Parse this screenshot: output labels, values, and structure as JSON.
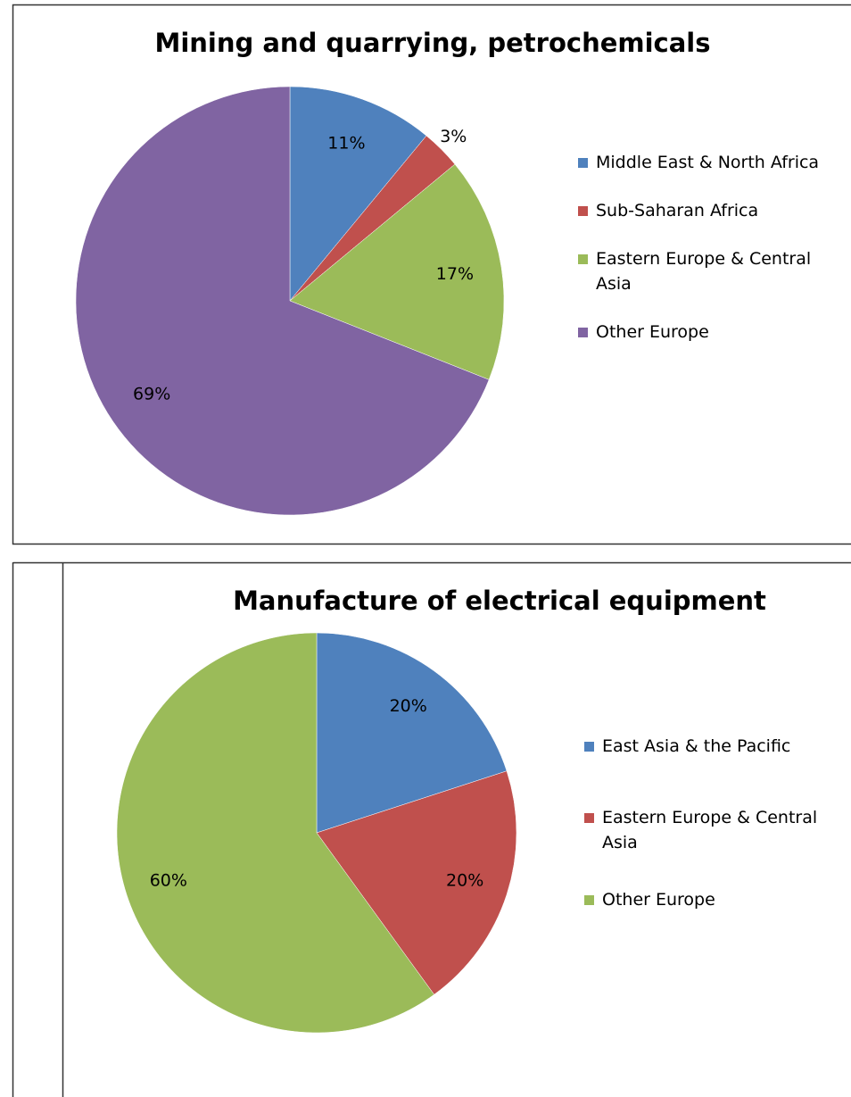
{
  "chart_data": [
    {
      "type": "pie",
      "title": "Mining and quarrying, petrochemicals",
      "categories": [
        "Middle East & North Africa",
        "Sub-Saharan Africa",
        "Eastern Europe & Central Asia",
        "Other Europe"
      ],
      "values": [
        11,
        3,
        17,
        69
      ],
      "value_labels": [
        "11%",
        "3%",
        "17%",
        "69%"
      ],
      "colors": [
        "#4f81bd",
        "#c0504d",
        "#9bbb59",
        "#8064a2"
      ],
      "legend": "right"
    },
    {
      "type": "pie",
      "title": "Manufacture of electrical equipment",
      "categories": [
        "East Asia & the Pacific",
        "Eastern Europe & Central Asia",
        "Other Europe"
      ],
      "values": [
        20,
        20,
        60
      ],
      "value_labels": [
        "20%",
        "20%",
        "60%"
      ],
      "colors": [
        "#4f81bd",
        "#c0504d",
        "#9bbb59"
      ],
      "legend": "right"
    }
  ]
}
